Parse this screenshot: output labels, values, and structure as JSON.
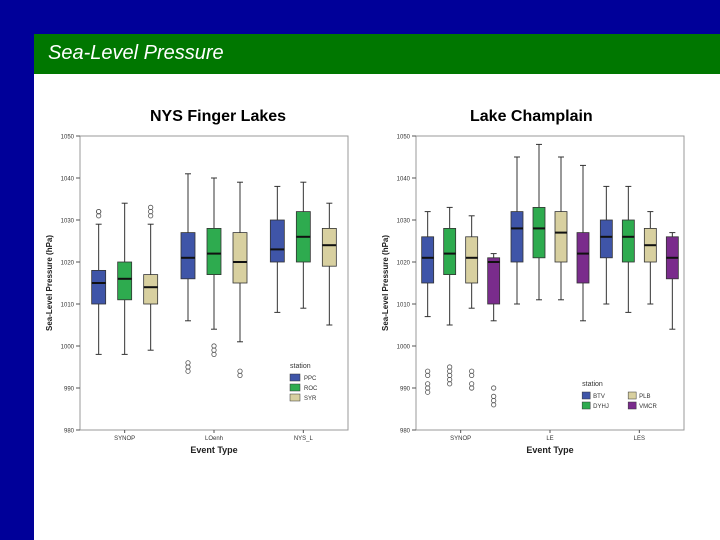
{
  "slide": {
    "title": "Sea-Level Pressure"
  },
  "colors": {
    "frame": "#000099",
    "title_bar": "#007700",
    "title_text": "#ffffff"
  },
  "chart_data": [
    {
      "type": "boxplot",
      "title": "NYS Finger Lakes",
      "xlabel": "Event Type",
      "ylabel": "Sea-Level Pressure (hPa)",
      "ylim": [
        980,
        1050
      ],
      "yticks": [
        980,
        990,
        1000,
        1010,
        1020,
        1030,
        1040,
        1050
      ],
      "categories": [
        "SYNOP",
        "LOenh",
        "NYS_L"
      ],
      "legend": {
        "title": "station",
        "position": "bottom-right"
      },
      "series": [
        {
          "name": "PPC",
          "color": "#3f55a8",
          "boxes": [
            {
              "min": 998,
              "q1": 1010,
              "median": 1015,
              "q3": 1018,
              "max": 1029,
              "outliers": [
                1031,
                1032,
                1032
              ]
            },
            {
              "min": 1006,
              "q1": 1016,
              "median": 1021,
              "q3": 1027,
              "max": 1041,
              "outliers": [
                996,
                995,
                994
              ]
            },
            {
              "min": 1008,
              "q1": 1020,
              "median": 1023,
              "q3": 1030,
              "max": 1038,
              "outliers": []
            }
          ]
        },
        {
          "name": "ROC",
          "color": "#2eab4f",
          "boxes": [
            {
              "min": 998,
              "q1": 1011,
              "median": 1016,
              "q3": 1020,
              "max": 1034,
              "outliers": []
            },
            {
              "min": 1004,
              "q1": 1017,
              "median": 1022,
              "q3": 1028,
              "max": 1040,
              "outliers": [
                1000,
                999,
                998
              ]
            },
            {
              "min": 1009,
              "q1": 1020,
              "median": 1026,
              "q3": 1032,
              "max": 1039,
              "outliers": []
            }
          ]
        },
        {
          "name": "SYR",
          "color": "#d8d0a0",
          "boxes": [
            {
              "min": 999,
              "q1": 1010,
              "median": 1014,
              "q3": 1017,
              "max": 1029,
              "outliers": [
                1031,
                1032,
                1033
              ]
            },
            {
              "min": 1001,
              "q1": 1015,
              "median": 1020,
              "q3": 1027,
              "max": 1039,
              "outliers": [
                994,
                993
              ]
            },
            {
              "min": 1005,
              "q1": 1019,
              "median": 1024,
              "q3": 1028,
              "max": 1034,
              "outliers": []
            }
          ]
        }
      ]
    },
    {
      "type": "boxplot",
      "title": "Lake Champlain",
      "xlabel": "Event Type",
      "ylabel": "Sea-Level Pressure (hPa)",
      "ylim": [
        980,
        1050
      ],
      "yticks": [
        980,
        990,
        1000,
        1010,
        1020,
        1030,
        1040,
        1050
      ],
      "categories": [
        "SYNOP",
        "LE",
        "LES"
      ],
      "legend": {
        "title": "station",
        "position": "bottom-left"
      },
      "series": [
        {
          "name": "BTV",
          "color": "#3f55a8",
          "boxes": [
            {
              "min": 1007,
              "q1": 1015,
              "median": 1021,
              "q3": 1026,
              "max": 1032,
              "outliers": [
                994,
                993,
                991,
                990,
                989
              ]
            },
            {
              "min": 1010,
              "q1": 1020,
              "median": 1028,
              "q3": 1032,
              "max": 1045,
              "outliers": []
            },
            {
              "min": 1010,
              "q1": 1021,
              "median": 1026,
              "q3": 1030,
              "max": 1038,
              "outliers": []
            }
          ]
        },
        {
          "name": "DYHJ",
          "color": "#2eab4f",
          "boxes": [
            {
              "min": 1005,
              "q1": 1017,
              "median": 1022,
              "q3": 1028,
              "max": 1033,
              "outliers": [
                995,
                994,
                993,
                992,
                991
              ]
            },
            {
              "min": 1011,
              "q1": 1021,
              "median": 1028,
              "q3": 1033,
              "max": 1048,
              "outliers": []
            },
            {
              "min": 1008,
              "q1": 1020,
              "median": 1026,
              "q3": 1030,
              "max": 1038,
              "outliers": []
            }
          ]
        },
        {
          "name": "PLB",
          "color": "#d8d0a0",
          "boxes": [
            {
              "min": 1009,
              "q1": 1015,
              "median": 1021,
              "q3": 1026,
              "max": 1031,
              "outliers": [
                994,
                993,
                991,
                990
              ]
            },
            {
              "min": 1011,
              "q1": 1020,
              "median": 1027,
              "q3": 1032,
              "max": 1045,
              "outliers": []
            },
            {
              "min": 1010,
              "q1": 1020,
              "median": 1024,
              "q3": 1028,
              "max": 1032,
              "outliers": []
            }
          ]
        },
        {
          "name": "VMCR",
          "color": "#7a2c8c",
          "boxes": [
            {
              "min": 1006,
              "q1": 1010,
              "median": 1020,
              "q3": 1021,
              "max": 1022,
              "outliers": [
                990,
                988,
                987,
                986
              ]
            },
            {
              "min": 1006,
              "q1": 1015,
              "median": 1022,
              "q3": 1027,
              "max": 1043,
              "outliers": []
            },
            {
              "min": 1004,
              "q1": 1016,
              "median": 1021,
              "q3": 1026,
              "max": 1027,
              "outliers": []
            }
          ]
        }
      ]
    }
  ]
}
